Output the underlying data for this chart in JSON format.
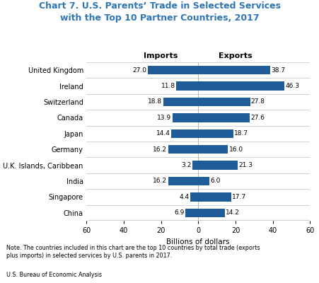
{
  "title_line1": "Chart 7. U.S. Parents’ Trade in Selected Services",
  "title_line2": "with the Top 10 Partner Countries, 2017",
  "countries": [
    "United Kingdom",
    "Ireland",
    "Switzerland",
    "Canada",
    "Japan",
    "Germany",
    "U.K. Islands, Caribbean",
    "India",
    "Singapore",
    "China"
  ],
  "imports": [
    27.0,
    11.8,
    18.8,
    13.9,
    14.4,
    16.2,
    3.2,
    16.2,
    4.4,
    6.9
  ],
  "exports": [
    38.7,
    46.3,
    27.8,
    27.6,
    18.7,
    16.0,
    21.3,
    6.0,
    17.7,
    14.2
  ],
  "bar_color": "#1f5c99",
  "xlabel": "Billions of dollars",
  "imports_label": "Imports",
  "exports_label": "Exports",
  "xlim": [
    -60,
    60
  ],
  "xticks": [
    -60,
    -40,
    -20,
    0,
    20,
    40,
    60
  ],
  "xticklabels": [
    "60",
    "40",
    "20",
    "0",
    "20",
    "40",
    "60"
  ],
  "note": "Note. The countries included in this chart are the top 10 countries by total trade (exports\nplus imports) in selected services by U.S. parents in 2017.",
  "source": "U.S. Bureau of Economic Analysis",
  "title_color": "#2e75b6",
  "separator_color": "#cccccc",
  "bar_height": 0.55
}
